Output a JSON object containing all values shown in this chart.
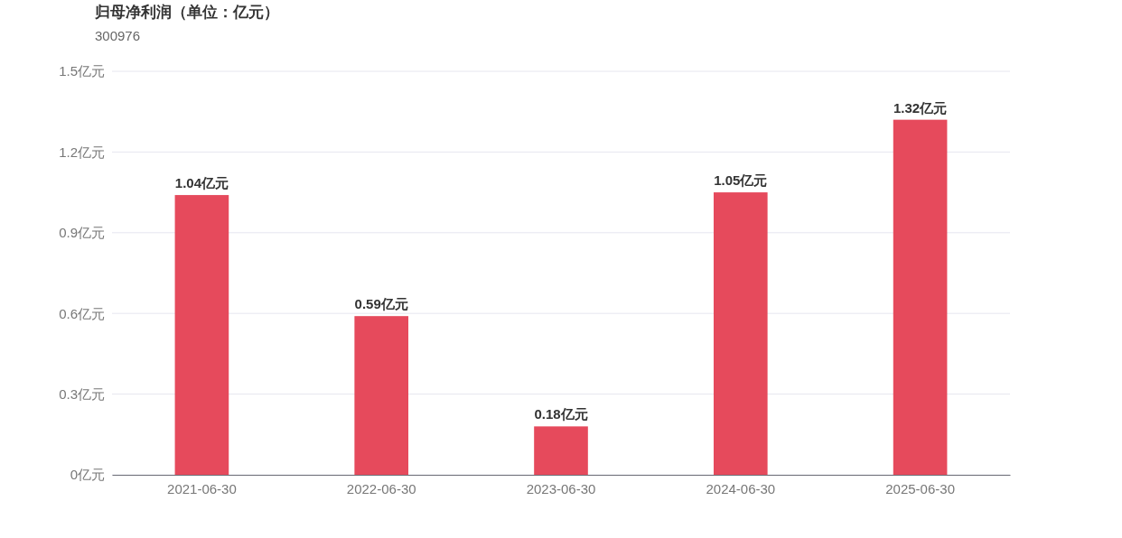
{
  "chart_data": {
    "type": "bar",
    "title": "归母净利润（单位：亿元）",
    "subtitle": "300976",
    "categories": [
      "2021-06-30",
      "2022-06-30",
      "2023-06-30",
      "2024-06-30",
      "2025-06-30"
    ],
    "values": [
      1.04,
      0.59,
      0.18,
      1.05,
      1.32
    ],
    "value_labels": [
      "1.04亿元",
      "0.59亿元",
      "0.18亿元",
      "1.05亿元",
      "1.32亿元"
    ],
    "color": "#e64a5c",
    "ylim": [
      0,
      1.5
    ],
    "yticks": [
      {
        "value": 0,
        "label": "0亿元"
      },
      {
        "value": 0.3,
        "label": "0.3亿元"
      },
      {
        "value": 0.6,
        "label": "0.6亿元"
      },
      {
        "value": 0.9,
        "label": "0.9亿元"
      },
      {
        "value": 1.2,
        "label": "1.2亿元"
      },
      {
        "value": 1.5,
        "label": "1.5亿元"
      }
    ],
    "grid": "y"
  }
}
